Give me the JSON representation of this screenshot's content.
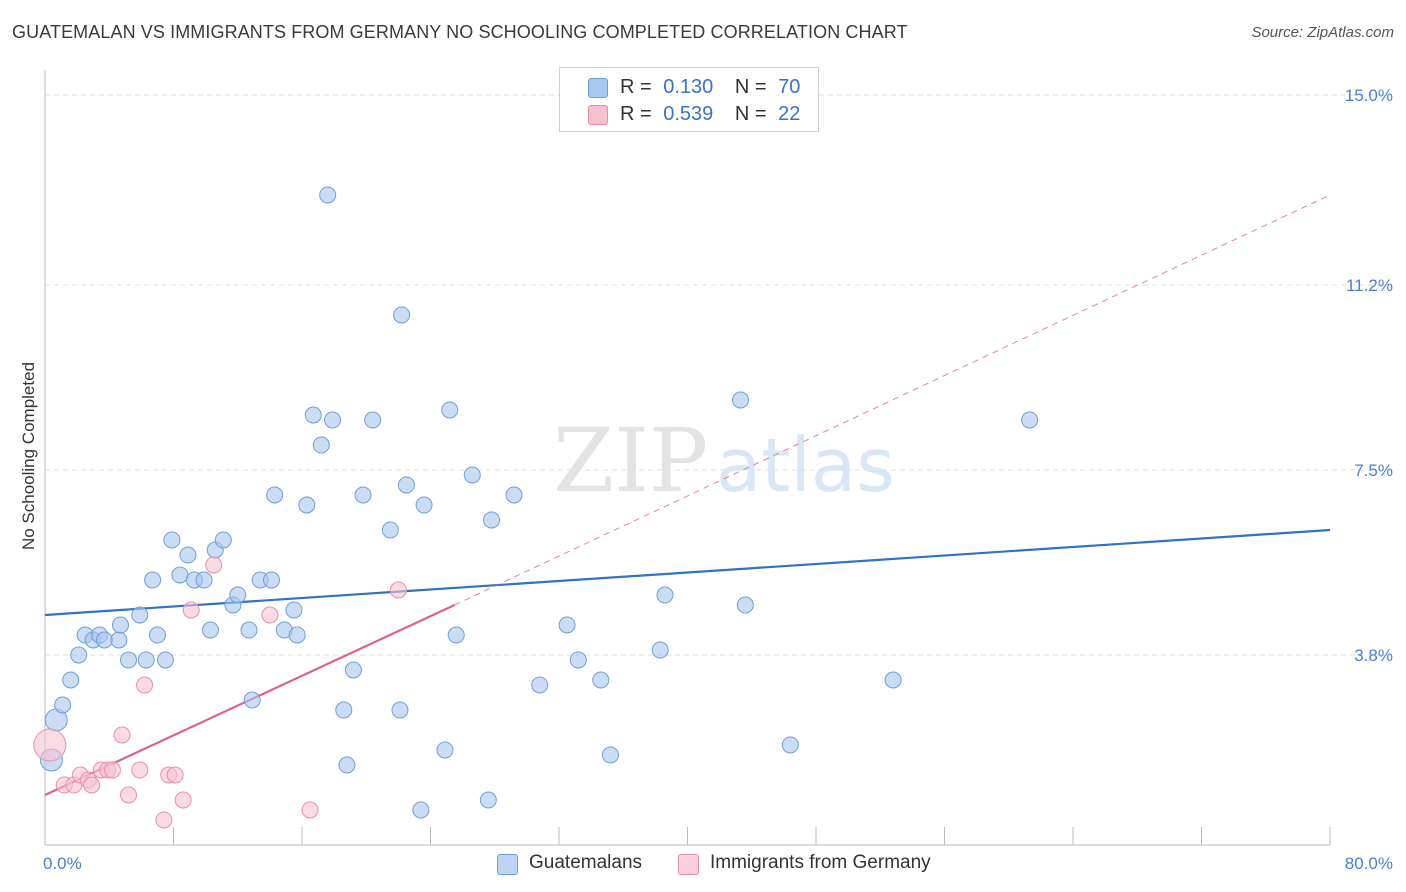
{
  "title": "GUATEMALAN VS IMMIGRANTS FROM GERMANY NO SCHOOLING COMPLETED CORRELATION CHART",
  "source": "Source: ZipAtlas.com",
  "watermark": {
    "zip": "ZIP",
    "atlas": "atlas"
  },
  "legend": {
    "rows": [
      {
        "r_label": "R =",
        "r_value": "0.130",
        "n_label": "N =",
        "n_value": "70",
        "color": "#a9c8f0",
        "border": "#6f9fd8"
      },
      {
        "r_label": "R =",
        "r_value": "0.539",
        "n_label": "N =",
        "n_value": "22",
        "color": "#f8c0d0",
        "border": "#e88aa6"
      }
    ]
  },
  "bottom_legend": [
    {
      "label": "Guatemalans",
      "color": "#bcd5f5",
      "border": "#6f9fd8"
    },
    {
      "label": "Immigrants from Germany",
      "color": "#fbd0dc",
      "border": "#e88aa6"
    }
  ],
  "colors": {
    "blue_point_fill": "#a8c6ee",
    "blue_point_stroke": "#6f9fd8",
    "blue_line": "#2f72c8",
    "pink_point_fill": "#f6c2d2",
    "pink_point_stroke": "#e890ab",
    "pink_line": "#e0608c",
    "grid": "#dddddd",
    "tick_text": "#4a7fd0"
  },
  "chart_data": {
    "type": "scatter",
    "title": "GUATEMALAN VS IMMIGRANTS FROM GERMANY NO SCHOOLING COMPLETED CORRELATION CHART",
    "xlabel": "",
    "ylabel": "No Schooling Completed",
    "xlim": [
      0,
      80
    ],
    "ylim": [
      0,
      15.5
    ],
    "x_tick_labels": [
      "0.0%",
      "80.0%"
    ],
    "y_ticks": [
      3.8,
      7.5,
      11.2,
      15.0
    ],
    "y_tick_labels": [
      "3.8%",
      "7.5%",
      "11.2%",
      "15.0%"
    ],
    "grid": true,
    "legend_position": "top-center",
    "series": [
      {
        "name": "Guatemalans",
        "r": 0.13,
        "n": 70,
        "trend": {
          "x": [
            0,
            80
          ],
          "y": [
            4.6,
            6.3
          ]
        },
        "points": [
          [
            0.4,
            1.7
          ],
          [
            0.7,
            2.5
          ],
          [
            1.1,
            2.8
          ],
          [
            1.6,
            3.3
          ],
          [
            2.1,
            3.8
          ],
          [
            2.5,
            4.2
          ],
          [
            3.0,
            4.1
          ],
          [
            3.4,
            4.2
          ],
          [
            3.7,
            4.1
          ],
          [
            4.6,
            4.1
          ],
          [
            4.7,
            4.4
          ],
          [
            5.2,
            3.7
          ],
          [
            5.9,
            4.6
          ],
          [
            6.3,
            3.7
          ],
          [
            6.7,
            5.3
          ],
          [
            7.0,
            4.2
          ],
          [
            7.5,
            3.7
          ],
          [
            7.9,
            6.1
          ],
          [
            8.4,
            5.4
          ],
          [
            8.9,
            5.8
          ],
          [
            9.3,
            5.3
          ],
          [
            9.9,
            5.3
          ],
          [
            10.3,
            4.3
          ],
          [
            10.6,
            5.9
          ],
          [
            11.1,
            6.1
          ],
          [
            11.7,
            4.8
          ],
          [
            12.0,
            5.0
          ],
          [
            12.7,
            4.3
          ],
          [
            12.9,
            2.9
          ],
          [
            13.4,
            5.3
          ],
          [
            14.1,
            5.3
          ],
          [
            14.3,
            7.0
          ],
          [
            14.9,
            4.3
          ],
          [
            15.5,
            4.7
          ],
          [
            15.7,
            4.2
          ],
          [
            16.3,
            6.8
          ],
          [
            16.7,
            8.6
          ],
          [
            17.2,
            8.0
          ],
          [
            17.6,
            13.0
          ],
          [
            17.9,
            8.5
          ],
          [
            18.6,
            2.7
          ],
          [
            18.8,
            1.6
          ],
          [
            19.2,
            3.5
          ],
          [
            19.8,
            7.0
          ],
          [
            20.4,
            8.5
          ],
          [
            21.5,
            6.3
          ],
          [
            22.1,
            2.7
          ],
          [
            22.2,
            10.6
          ],
          [
            22.5,
            7.2
          ],
          [
            23.4,
            0.7
          ],
          [
            23.6,
            6.8
          ],
          [
            24.9,
            1.9
          ],
          [
            25.2,
            8.7
          ],
          [
            25.6,
            4.2
          ],
          [
            26.6,
            7.4
          ],
          [
            27.6,
            0.9
          ],
          [
            27.8,
            6.5
          ],
          [
            29.2,
            7.0
          ],
          [
            30.8,
            3.2
          ],
          [
            32.5,
            4.4
          ],
          [
            33.2,
            3.7
          ],
          [
            34.6,
            3.3
          ],
          [
            35.2,
            1.8
          ],
          [
            38.3,
            3.9
          ],
          [
            38.6,
            5.0
          ],
          [
            43.3,
            8.9
          ],
          [
            43.6,
            4.8
          ],
          [
            46.4,
            2.0
          ],
          [
            52.8,
            3.3
          ],
          [
            61.3,
            8.5
          ]
        ]
      },
      {
        "name": "Immigrants from Germany",
        "r": 0.539,
        "n": 22,
        "trend": {
          "x": [
            0,
            25.5
          ],
          "y": [
            1.0,
            4.8
          ]
        },
        "trend_extension": {
          "x": [
            25.5,
            80
          ],
          "y": [
            4.8,
            13.0
          ]
        },
        "points": [
          [
            0.3,
            2.0
          ],
          [
            1.2,
            1.2
          ],
          [
            1.8,
            1.2
          ],
          [
            2.2,
            1.4
          ],
          [
            2.7,
            1.3
          ],
          [
            2.9,
            1.2
          ],
          [
            3.5,
            1.5
          ],
          [
            3.9,
            1.5
          ],
          [
            4.2,
            1.5
          ],
          [
            4.8,
            2.2
          ],
          [
            5.2,
            1.0
          ],
          [
            5.9,
            1.5
          ],
          [
            6.2,
            3.2
          ],
          [
            7.4,
            0.5
          ],
          [
            7.7,
            1.4
          ],
          [
            8.1,
            1.4
          ],
          [
            8.6,
            0.9
          ],
          [
            9.1,
            4.7
          ],
          [
            10.5,
            5.6
          ],
          [
            14.0,
            4.6
          ],
          [
            16.5,
            0.7
          ],
          [
            22.0,
            5.1
          ]
        ]
      }
    ]
  }
}
